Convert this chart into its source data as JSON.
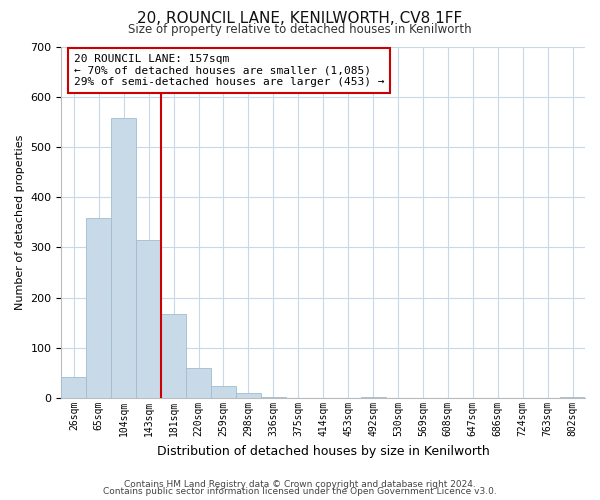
{
  "title": "20, ROUNCIL LANE, KENILWORTH, CV8 1FF",
  "subtitle": "Size of property relative to detached houses in Kenilworth",
  "xlabel": "Distribution of detached houses by size in Kenilworth",
  "ylabel": "Number of detached properties",
  "bin_labels": [
    "26sqm",
    "65sqm",
    "104sqm",
    "143sqm",
    "181sqm",
    "220sqm",
    "259sqm",
    "298sqm",
    "336sqm",
    "375sqm",
    "414sqm",
    "453sqm",
    "492sqm",
    "530sqm",
    "569sqm",
    "608sqm",
    "647sqm",
    "686sqm",
    "724sqm",
    "763sqm",
    "802sqm"
  ],
  "bar_heights": [
    43,
    358,
    558,
    315,
    167,
    60,
    25,
    10,
    3,
    0,
    0,
    0,
    2,
    0,
    0,
    0,
    0,
    0,
    0,
    0,
    3
  ],
  "bar_color": "#c8d9e8",
  "bar_edgecolor": "#a0bdd0",
  "vline_x": 4.0,
  "vline_color": "#cc0000",
  "ylim": [
    0,
    700
  ],
  "yticks": [
    0,
    100,
    200,
    300,
    400,
    500,
    600,
    700
  ],
  "annotation_text": "20 ROUNCIL LANE: 157sqm\n← 70% of detached houses are smaller (1,085)\n29% of semi-detached houses are larger (453) →",
  "annotation_box_color": "#ffffff",
  "annotation_box_edgecolor": "#cc0000",
  "footer_line1": "Contains HM Land Registry data © Crown copyright and database right 2024.",
  "footer_line2": "Contains public sector information licensed under the Open Government Licence v3.0.",
  "background_color": "#ffffff",
  "grid_color": "#c8d8e8"
}
